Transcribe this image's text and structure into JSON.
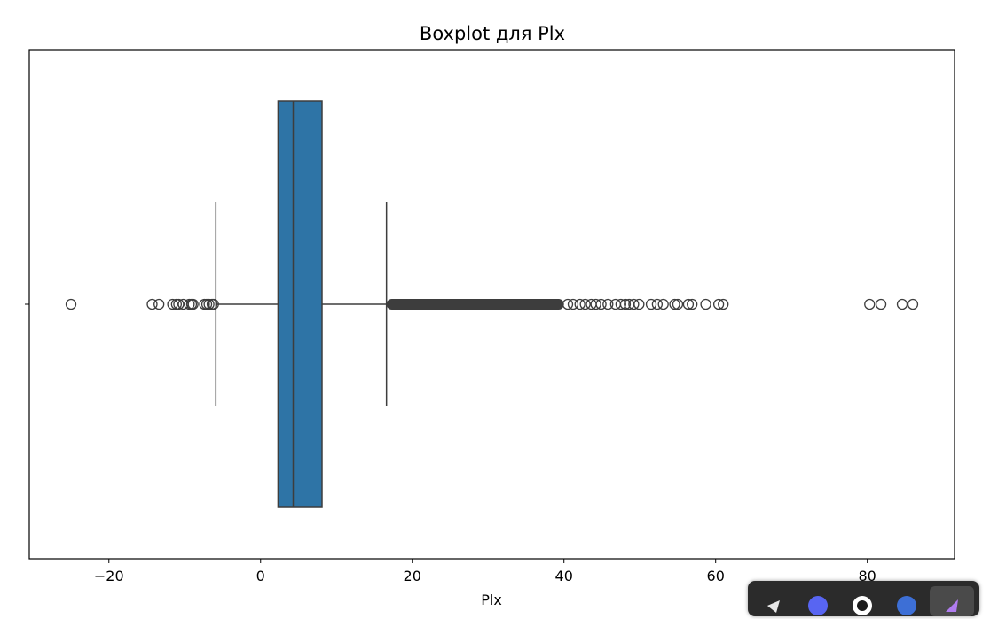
{
  "chart_data": {
    "type": "boxplot",
    "title": "Boxplot для Plx",
    "xlabel": "Plx",
    "xlim": [
      -30.5,
      91.5
    ],
    "xticks": [
      -20,
      0,
      20,
      40,
      60,
      80
    ],
    "xtick_labels": [
      "−20",
      "0",
      "20",
      "40",
      "60",
      "80"
    ],
    "grid": false,
    "box": {
      "q1": 2.3,
      "median": 4.3,
      "q3": 8.1,
      "whisker_low": -5.9,
      "whisker_high": 16.6,
      "color": "#2e74a6"
    },
    "outlier_range_dense": [
      16.6,
      40.0
    ],
    "outliers": [
      -25.0,
      -14.3,
      -13.4,
      -11.6,
      -11.1,
      -10.8,
      -10.2,
      -9.4,
      -9.1,
      -8.9,
      -7.4,
      -7.1,
      -6.8,
      -6.4,
      -6.2,
      40.5,
      41.2,
      42.1,
      42.8,
      43.6,
      44.2,
      44.9,
      45.8,
      46.8,
      47.5,
      48.1,
      48.6,
      49.2,
      49.9,
      51.5,
      52.3,
      53.1,
      54.6,
      55.0,
      56.4,
      56.9,
      58.7,
      60.4,
      61.0,
      80.3,
      81.8,
      84.6,
      86.0
    ]
  },
  "taskbar": {
    "icons": [
      "send-icon",
      "discord-icon",
      "github-icon",
      "check-icon",
      "arrow-icon"
    ]
  }
}
